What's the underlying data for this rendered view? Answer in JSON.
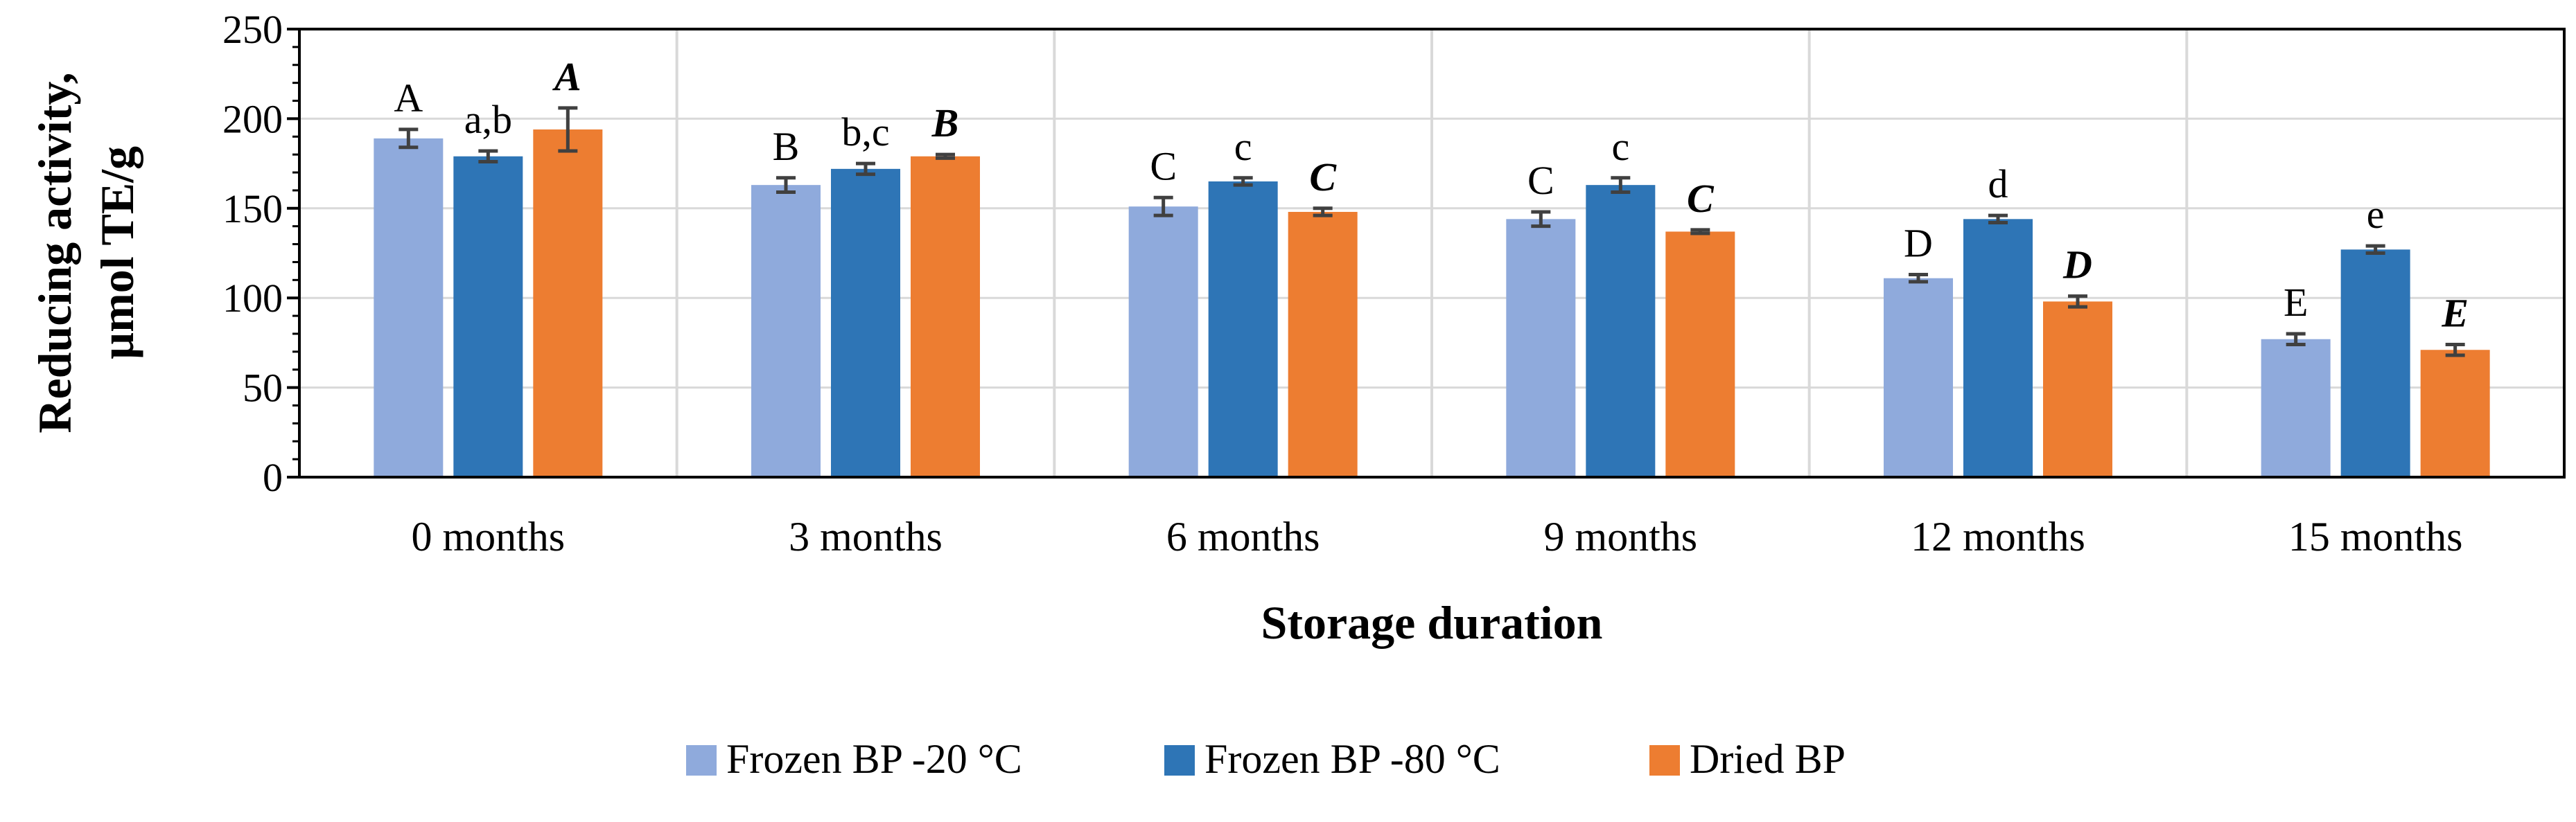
{
  "chart_data": {
    "type": "bar",
    "title": "",
    "xlabel": "Storage duration",
    "ylabel_lines": [
      "Reducing activity,",
      "µmol TE/g"
    ],
    "ylim": [
      0,
      250
    ],
    "yticks": [
      0,
      50,
      100,
      150,
      200,
      250
    ],
    "ytick_labels": [
      "0",
      "50",
      "100",
      "150",
      "200",
      "250"
    ],
    "categories": [
      "0 months",
      "3 months",
      "6 months",
      "9 months",
      "12 months",
      "15 months"
    ],
    "series": [
      {
        "name": "Frozen BP -20 °C",
        "color": "#8faadc",
        "values": [
          189,
          163,
          151,
          144,
          111,
          77
        ],
        "errors": [
          5,
          4,
          5,
          4,
          2,
          3
        ],
        "letters": [
          "A",
          "B",
          "C",
          "C",
          "D",
          "E"
        ],
        "letter_style": "normal"
      },
      {
        "name": "Frozen BP -80 °C",
        "color": "#2e75b6",
        "values": [
          179,
          172,
          165,
          163,
          144,
          127
        ],
        "errors": [
          3,
          3,
          2,
          4,
          2,
          2
        ],
        "letters": [
          "a,b",
          "b,c",
          "c",
          "c",
          "d",
          "e"
        ],
        "letter_style": "normal"
      },
      {
        "name": "Dried BP",
        "color": "#ed7d31",
        "values": [
          194,
          179,
          148,
          137,
          98,
          71
        ],
        "errors": [
          12,
          1,
          2,
          1,
          3,
          3
        ],
        "letters": [
          "A",
          "B",
          "C",
          "C",
          "D",
          "E"
        ],
        "letter_style": "bold-italic"
      }
    ],
    "grid": true,
    "legend_position": "bottom"
  }
}
